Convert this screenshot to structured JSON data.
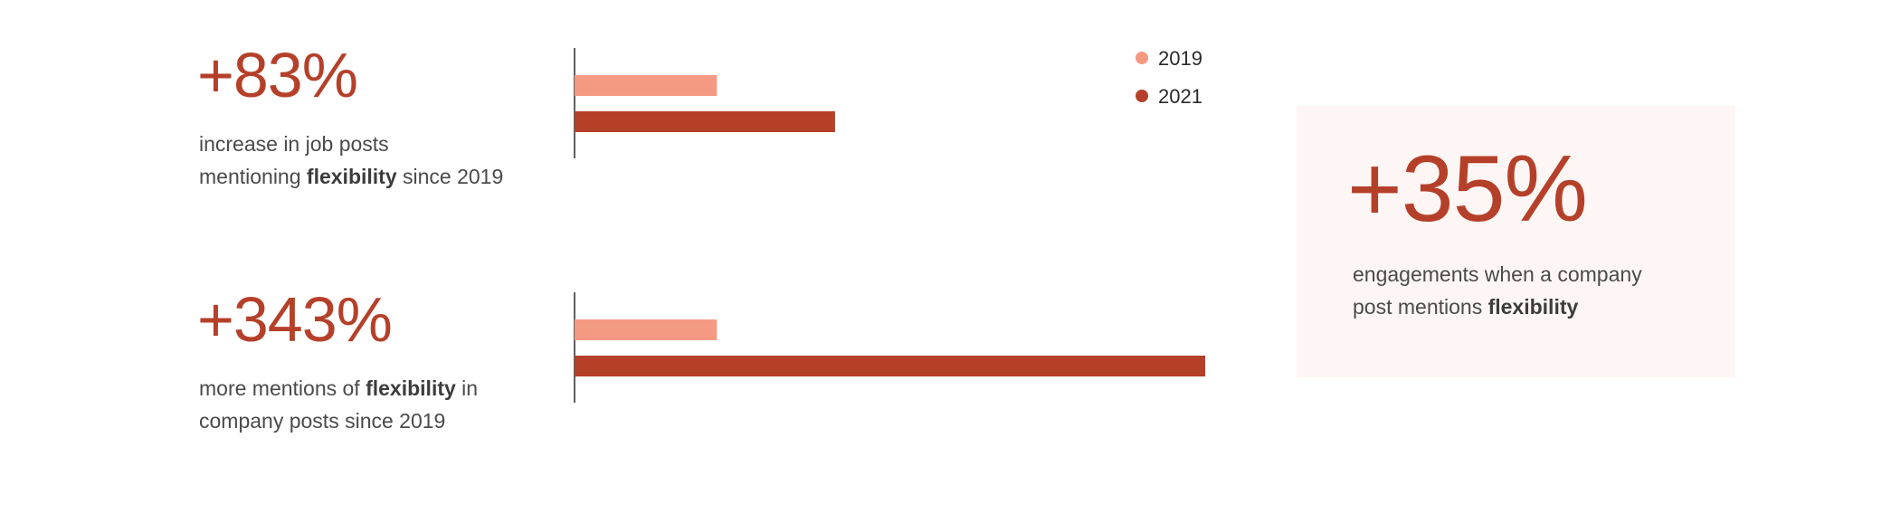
{
  "stats": [
    {
      "value": "+83%",
      "desc": {
        "line1": "increase in job posts",
        "line2_before": "mentioning ",
        "line2_bold": "flexibility",
        "line2_after": " since 2019"
      }
    },
    {
      "value": "+343%",
      "desc": {
        "line1_before": "more mentions of ",
        "line1_bold": "flexibility",
        "line1_after": " in",
        "line2": "company posts since 2019"
      }
    }
  ],
  "card": {
    "value": "+35%",
    "desc": {
      "line1": "engagements when a company",
      "line2_before": "post mentions ",
      "line2_bold": "flexibility"
    }
  },
  "colors": {
    "accent": "#b5402a",
    "series_2019": "#f59a82",
    "series_2021": "#b5402a",
    "card_bg": "#fef6f4"
  },
  "chart_data": {
    "type": "bar",
    "orientation": "horizontal",
    "categories": [
      "job posts mentioning flexibility",
      "company posts mentioning flexibility"
    ],
    "series": [
      {
        "name": "2019",
        "values": [
          100,
          100
        ]
      },
      {
        "name": "2021",
        "values": [
          183,
          443
        ]
      }
    ],
    "xlim": [
      0,
      443
    ],
    "grid": false,
    "legend_position": "top-right"
  }
}
